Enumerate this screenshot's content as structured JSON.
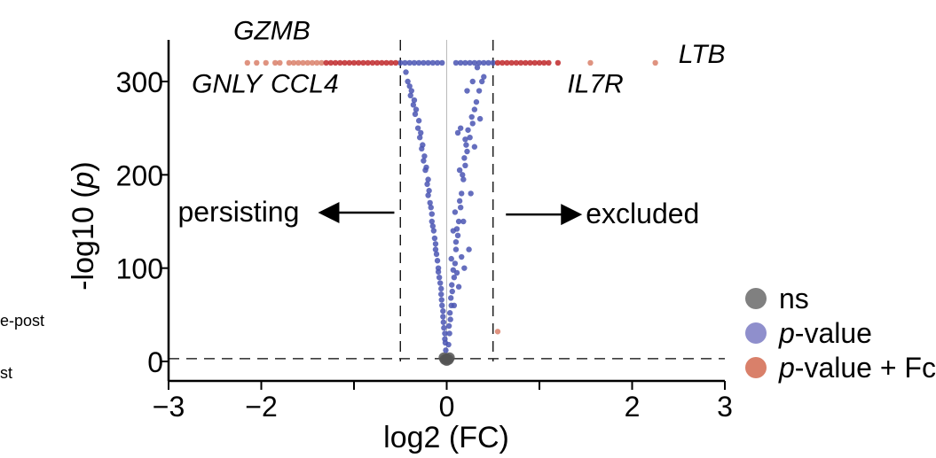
{
  "left_fragments": {
    "line1": "e-post",
    "line2": "st"
  },
  "chart_data": {
    "type": "scatter",
    "title": "",
    "xlabel": "log2 (FC)",
    "ylabel": "-log10 (p)",
    "xlim": [
      -3,
      3
    ],
    "ylim": [
      0,
      340
    ],
    "xticks": [
      -3,
      -2,
      -1,
      0,
      1,
      2,
      3
    ],
    "xtick_labels": [
      "−3",
      "−2",
      "",
      "0",
      "",
      "2",
      "3"
    ],
    "yticks": [
      0,
      100,
      200,
      300
    ],
    "ytick_labels": [
      "0",
      "100",
      "200",
      "300"
    ],
    "grid": false,
    "fc_cutoff": 0.5,
    "p_cutoff_y": 3,
    "legend": {
      "position": "right",
      "items": [
        {
          "label": "ns",
          "italic_prefix": "",
          "color": "#808080"
        },
        {
          "label": "-value",
          "italic_prefix": "p",
          "color": "#8f8fcc"
        },
        {
          "label": "-value + Fc",
          "italic_prefix": "p",
          "color": "#d9806a"
        }
      ]
    },
    "annotations": [
      {
        "text": "persisting",
        "x": -2.9,
        "y": 150,
        "arrow": "left"
      },
      {
        "text": "excluded",
        "x": 1.5,
        "y": 148,
        "arrow": "right"
      }
    ],
    "gene_labels": [
      {
        "text": "GZMB",
        "x": -2.3,
        "y": 345
      },
      {
        "text": "GNLY",
        "x": -2.75,
        "y": 288
      },
      {
        "text": "CCL4",
        "x": -1.9,
        "y": 288
      },
      {
        "text": "LTB",
        "x": 2.5,
        "y": 320
      },
      {
        "text": "IL7R",
        "x": 1.3,
        "y": 288
      }
    ],
    "series": [
      {
        "name": "ns",
        "color": "#555555",
        "points": [
          [
            0.0,
            3
          ],
          [
            0.02,
            2
          ],
          [
            -0.02,
            2
          ],
          [
            0.03,
            4
          ],
          [
            -0.03,
            4
          ],
          [
            0.0,
            1
          ]
        ]
      },
      {
        "name": "p-value",
        "color": "#4a55b3",
        "points": [
          [
            -0.5,
            320
          ],
          [
            -0.45,
            320
          ],
          [
            -0.4,
            320
          ],
          [
            -0.35,
            320
          ],
          [
            -0.3,
            320
          ],
          [
            -0.25,
            320
          ],
          [
            -0.2,
            320
          ],
          [
            -0.15,
            320
          ],
          [
            -0.1,
            320
          ],
          [
            -0.05,
            320
          ],
          [
            0.1,
            320
          ],
          [
            0.15,
            320
          ],
          [
            0.2,
            320
          ],
          [
            0.25,
            320
          ],
          [
            0.3,
            320
          ],
          [
            0.35,
            320
          ],
          [
            0.4,
            320
          ],
          [
            0.45,
            320
          ],
          [
            0.5,
            320
          ],
          [
            -0.42,
            300
          ],
          [
            -0.38,
            290
          ],
          [
            -0.35,
            280
          ],
          [
            -0.33,
            270
          ],
          [
            -0.3,
            258
          ],
          [
            -0.28,
            245
          ],
          [
            -0.26,
            232
          ],
          [
            -0.24,
            220
          ],
          [
            -0.22,
            208
          ],
          [
            -0.2,
            195
          ],
          [
            -0.19,
            183
          ],
          [
            -0.18,
            170
          ],
          [
            -0.16,
            158
          ],
          [
            -0.15,
            145
          ],
          [
            -0.13,
            132
          ],
          [
            -0.12,
            120
          ],
          [
            -0.1,
            108
          ],
          [
            -0.09,
            96
          ],
          [
            -0.07,
            84
          ],
          [
            -0.06,
            72
          ],
          [
            -0.05,
            60
          ],
          [
            -0.04,
            48
          ],
          [
            -0.03,
            36
          ],
          [
            -0.02,
            24
          ],
          [
            -0.01,
            12
          ],
          [
            -0.44,
            310
          ],
          [
            -0.4,
            295
          ],
          [
            -0.36,
            275
          ],
          [
            -0.31,
            250
          ],
          [
            -0.27,
            228
          ],
          [
            -0.23,
            205
          ],
          [
            -0.21,
            190
          ],
          [
            -0.17,
            165
          ],
          [
            -0.14,
            140
          ],
          [
            -0.11,
            115
          ],
          [
            -0.08,
            90
          ],
          [
            -0.055,
            66
          ],
          [
            -0.035,
            42
          ],
          [
            -0.015,
            20
          ],
          [
            -0.39,
            285
          ],
          [
            -0.34,
            265
          ],
          [
            -0.29,
            240
          ],
          [
            -0.25,
            215
          ],
          [
            -0.2,
            178
          ],
          [
            -0.16,
            150
          ],
          [
            -0.12,
            126
          ],
          [
            -0.09,
            100
          ],
          [
            -0.06,
            78
          ],
          [
            -0.04,
            54
          ],
          [
            -0.02,
            30
          ],
          [
            0.4,
            305
          ],
          [
            0.35,
            290
          ],
          [
            0.3,
            270
          ],
          [
            0.28,
            255
          ],
          [
            0.25,
            240
          ],
          [
            0.22,
            225
          ],
          [
            0.2,
            210
          ],
          [
            0.18,
            195
          ],
          [
            0.16,
            180
          ],
          [
            0.15,
            165
          ],
          [
            0.13,
            150
          ],
          [
            0.12,
            135
          ],
          [
            0.1,
            120
          ],
          [
            0.09,
            105
          ],
          [
            0.08,
            90
          ],
          [
            0.06,
            75
          ],
          [
            0.05,
            60
          ],
          [
            0.04,
            45
          ],
          [
            0.03,
            30
          ],
          [
            0.02,
            18
          ],
          [
            0.38,
            300
          ],
          [
            0.32,
            278
          ],
          [
            0.27,
            262
          ],
          [
            0.23,
            248
          ],
          [
            0.21,
            232
          ],
          [
            0.19,
            218
          ],
          [
            0.17,
            200
          ],
          [
            0.14,
            172
          ],
          [
            0.11,
            142
          ],
          [
            0.1,
            128
          ],
          [
            0.07,
            98
          ],
          [
            0.055,
            82
          ],
          [
            0.045,
            68
          ],
          [
            0.035,
            52
          ],
          [
            0.025,
            38
          ],
          [
            0.12,
            245
          ],
          [
            0.2,
            238
          ],
          [
            0.26,
            180
          ],
          [
            0.14,
            205
          ],
          [
            0.3,
            230
          ],
          [
            0.09,
            160
          ],
          [
            0.18,
            150
          ],
          [
            0.24,
            120
          ],
          [
            0.07,
            140
          ],
          [
            0.16,
            112
          ],
          [
            0.11,
            95
          ],
          [
            0.28,
            300
          ],
          [
            0.33,
            315
          ],
          [
            0.22,
            290
          ],
          [
            0.36,
            260
          ],
          [
            0.05,
            110
          ],
          [
            0.13,
            80
          ],
          [
            0.08,
            60
          ],
          [
            0.19,
            100
          ],
          [
            0.15,
            250
          ]
        ]
      },
      {
        "name": "p-value + Fc",
        "color": "#c0282a",
        "points": [
          [
            -2.15,
            320
          ],
          [
            -2.05,
            320
          ],
          [
            -1.95,
            320
          ],
          [
            -1.85,
            320
          ],
          [
            -1.8,
            320
          ],
          [
            -1.7,
            320
          ],
          [
            -1.65,
            320
          ],
          [
            -1.6,
            320
          ],
          [
            -1.55,
            320
          ],
          [
            -1.5,
            320
          ],
          [
            -1.45,
            320
          ],
          [
            -1.4,
            320
          ],
          [
            -1.35,
            320
          ],
          [
            -1.3,
            320
          ],
          [
            -1.25,
            320
          ],
          [
            -1.2,
            320
          ],
          [
            -1.15,
            320
          ],
          [
            -1.1,
            320
          ],
          [
            -1.05,
            320
          ],
          [
            -1.0,
            320
          ],
          [
            -0.95,
            320
          ],
          [
            -0.9,
            320
          ],
          [
            -0.85,
            320
          ],
          [
            -0.8,
            320
          ],
          [
            -0.75,
            320
          ],
          [
            -0.7,
            320
          ],
          [
            -0.65,
            320
          ],
          [
            -0.6,
            320
          ],
          [
            -0.55,
            320
          ],
          [
            0.55,
            320
          ],
          [
            0.6,
            320
          ],
          [
            0.65,
            320
          ],
          [
            0.7,
            320
          ],
          [
            0.75,
            320
          ],
          [
            0.8,
            320
          ],
          [
            0.85,
            320
          ],
          [
            0.9,
            320
          ],
          [
            0.95,
            320
          ],
          [
            1.0,
            320
          ],
          [
            1.05,
            320
          ],
          [
            1.1,
            320
          ],
          [
            1.2,
            320
          ],
          [
            1.55,
            320
          ],
          [
            2.25,
            320
          ],
          [
            0.55,
            32
          ]
        ]
      }
    ]
  }
}
